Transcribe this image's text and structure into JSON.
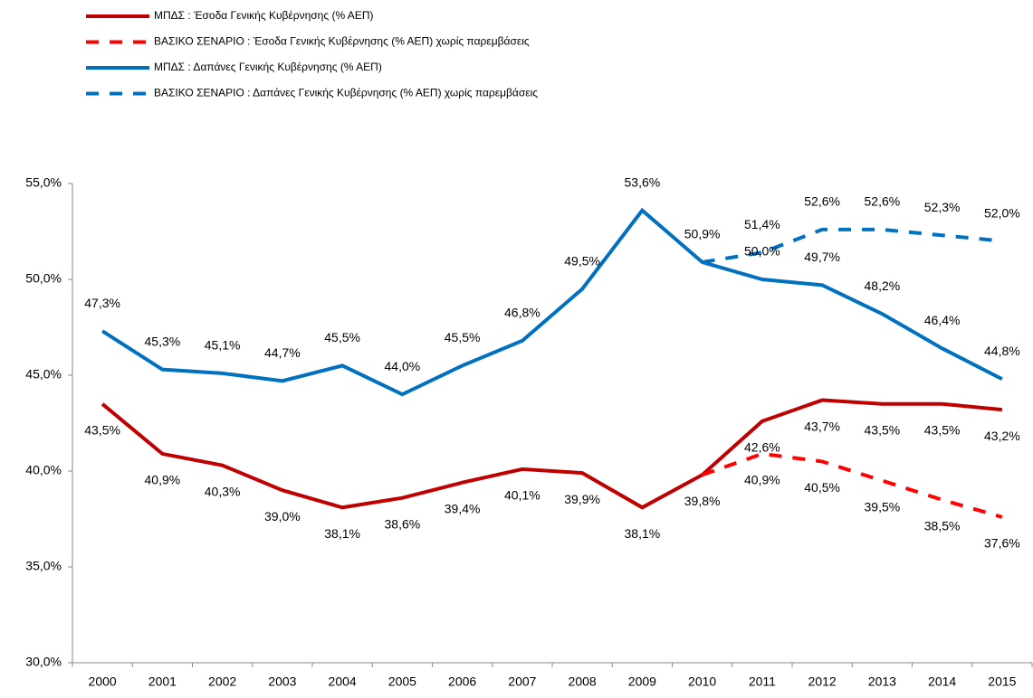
{
  "chart_data": {
    "type": "line",
    "categories": [
      "2000",
      "2001",
      "2002",
      "2003",
      "2004",
      "2005",
      "2006",
      "2007",
      "2008",
      "2009",
      "2010",
      "2011",
      "2012",
      "2013",
      "2014",
      "2015"
    ],
    "series": [
      {
        "name": "ΜΠΔΣ :  Έσοδα Γενικής Κυβέρνησης (% ΑΕΠ)",
        "color": "#c00000",
        "style": "solid",
        "values": [
          43.5,
          40.9,
          40.3,
          39.0,
          38.1,
          38.6,
          39.4,
          40.1,
          39.9,
          38.1,
          39.8,
          42.6,
          43.7,
          43.5,
          43.5,
          43.2
        ],
        "value_labels": [
          "43,5%",
          "40,9%",
          "40,3%",
          "39,0%",
          "38,1%",
          "38,6%",
          "39,4%",
          "40,1%",
          "39,9%",
          "38,1%",
          "39,8%",
          "42,6%",
          "43,7%",
          "43,5%",
          "43,5%",
          "43,2%"
        ]
      },
      {
        "name": "ΒΑΣΙΚΟ ΣΕΝΑΡΙΟ :  Έσοδα Γενικής Κυβέρνησης (% ΑΕΠ) χωρίς παρεμβάσεις",
        "color": "#ff0000",
        "style": "dashed",
        "values": [
          null,
          null,
          null,
          null,
          null,
          null,
          null,
          null,
          null,
          null,
          39.8,
          40.9,
          40.5,
          39.5,
          38.5,
          37.6
        ],
        "value_labels": [
          null,
          null,
          null,
          null,
          null,
          null,
          null,
          null,
          null,
          null,
          null,
          "40,9%",
          "40,5%",
          "39,5%",
          "38,5%",
          "37,6%"
        ]
      },
      {
        "name": "ΜΠΔΣ : Δαπάνες Γενικής Κυβέρνησης (% ΑΕΠ)",
        "color": "#0070c0",
        "style": "solid",
        "values": [
          47.3,
          45.3,
          45.1,
          44.7,
          45.5,
          44.0,
          45.5,
          46.8,
          49.5,
          53.6,
          50.9,
          50.0,
          49.7,
          48.2,
          46.4,
          44.8
        ],
        "value_labels": [
          "47,3%",
          "45,3%",
          "45,1%",
          "44,7%",
          "45,5%",
          "44,0%",
          "45,5%",
          "46,8%",
          "49,5%",
          "53,6%",
          "50,9%",
          "50,0%",
          "49,7%",
          "48,2%",
          "46,4%",
          "44,8%"
        ]
      },
      {
        "name": "ΒΑΣΙΚΟ ΣΕΝΑΡΙΟ : Δαπάνες Γενικής Κυβέρνησης (% ΑΕΠ) χωρίς παρεμβάσεις",
        "color": "#0070c0",
        "style": "dashed",
        "values": [
          null,
          null,
          null,
          null,
          null,
          null,
          null,
          null,
          null,
          null,
          50.9,
          51.4,
          52.6,
          52.6,
          52.3,
          52.0
        ],
        "value_labels": [
          null,
          null,
          null,
          null,
          null,
          null,
          null,
          null,
          null,
          null,
          null,
          "51,4%",
          "52,6%",
          "52,6%",
          "52,3%",
          "52,0%"
        ]
      }
    ],
    "ylim": [
      30,
      55
    ],
    "yticks": [
      {
        "value": 30,
        "label": "30,0%"
      },
      {
        "value": 35,
        "label": "35,0%"
      },
      {
        "value": 40,
        "label": "40,0%"
      },
      {
        "value": 45,
        "label": "45,0%"
      },
      {
        "value": 50,
        "label": "50,0%"
      },
      {
        "value": 55,
        "label": "55,0%"
      }
    ],
    "legend": "top-left"
  }
}
